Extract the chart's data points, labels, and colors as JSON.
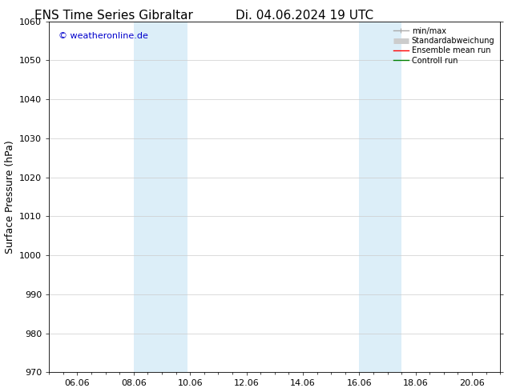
{
  "title_left": "ENS Time Series Gibraltar",
  "title_right": "Di. 04.06.2024 19 UTC",
  "ylabel": "Surface Pressure (hPa)",
  "ylim": [
    970,
    1060
  ],
  "yticks": [
    970,
    980,
    990,
    1000,
    1010,
    1020,
    1030,
    1040,
    1050,
    1060
  ],
  "xtick_labels": [
    "06.06",
    "08.06",
    "10.06",
    "12.06",
    "14.06",
    "16.06",
    "18.06",
    "20.06"
  ],
  "xtick_positions_days": [
    1,
    3,
    5,
    7,
    9,
    11,
    13,
    15
  ],
  "shaded_bands": [
    {
      "xmin_day": 3.0,
      "xmax_day": 4.9,
      "color": "#dceef8"
    },
    {
      "xmin_day": 11.0,
      "xmax_day": 12.5,
      "color": "#dceef8"
    }
  ],
  "watermark": "© weatheronline.de",
  "watermark_color": "#0000cc",
  "legend_entries": [
    {
      "label": "min/max",
      "color": "#aaaaaa",
      "lw": 1.0
    },
    {
      "label": "Standardabweichung",
      "color": "#cccccc",
      "lw": 5.0
    },
    {
      "label": "Ensemble mean run",
      "color": "#ff0000",
      "lw": 1.0
    },
    {
      "label": "Controll run",
      "color": "#008000",
      "lw": 1.0
    }
  ],
  "background_color": "#ffffff",
  "grid_color": "#cccccc",
  "title_fontsize": 11,
  "label_fontsize": 9,
  "tick_fontsize": 8,
  "legend_fontsize": 7,
  "watermark_fontsize": 8
}
